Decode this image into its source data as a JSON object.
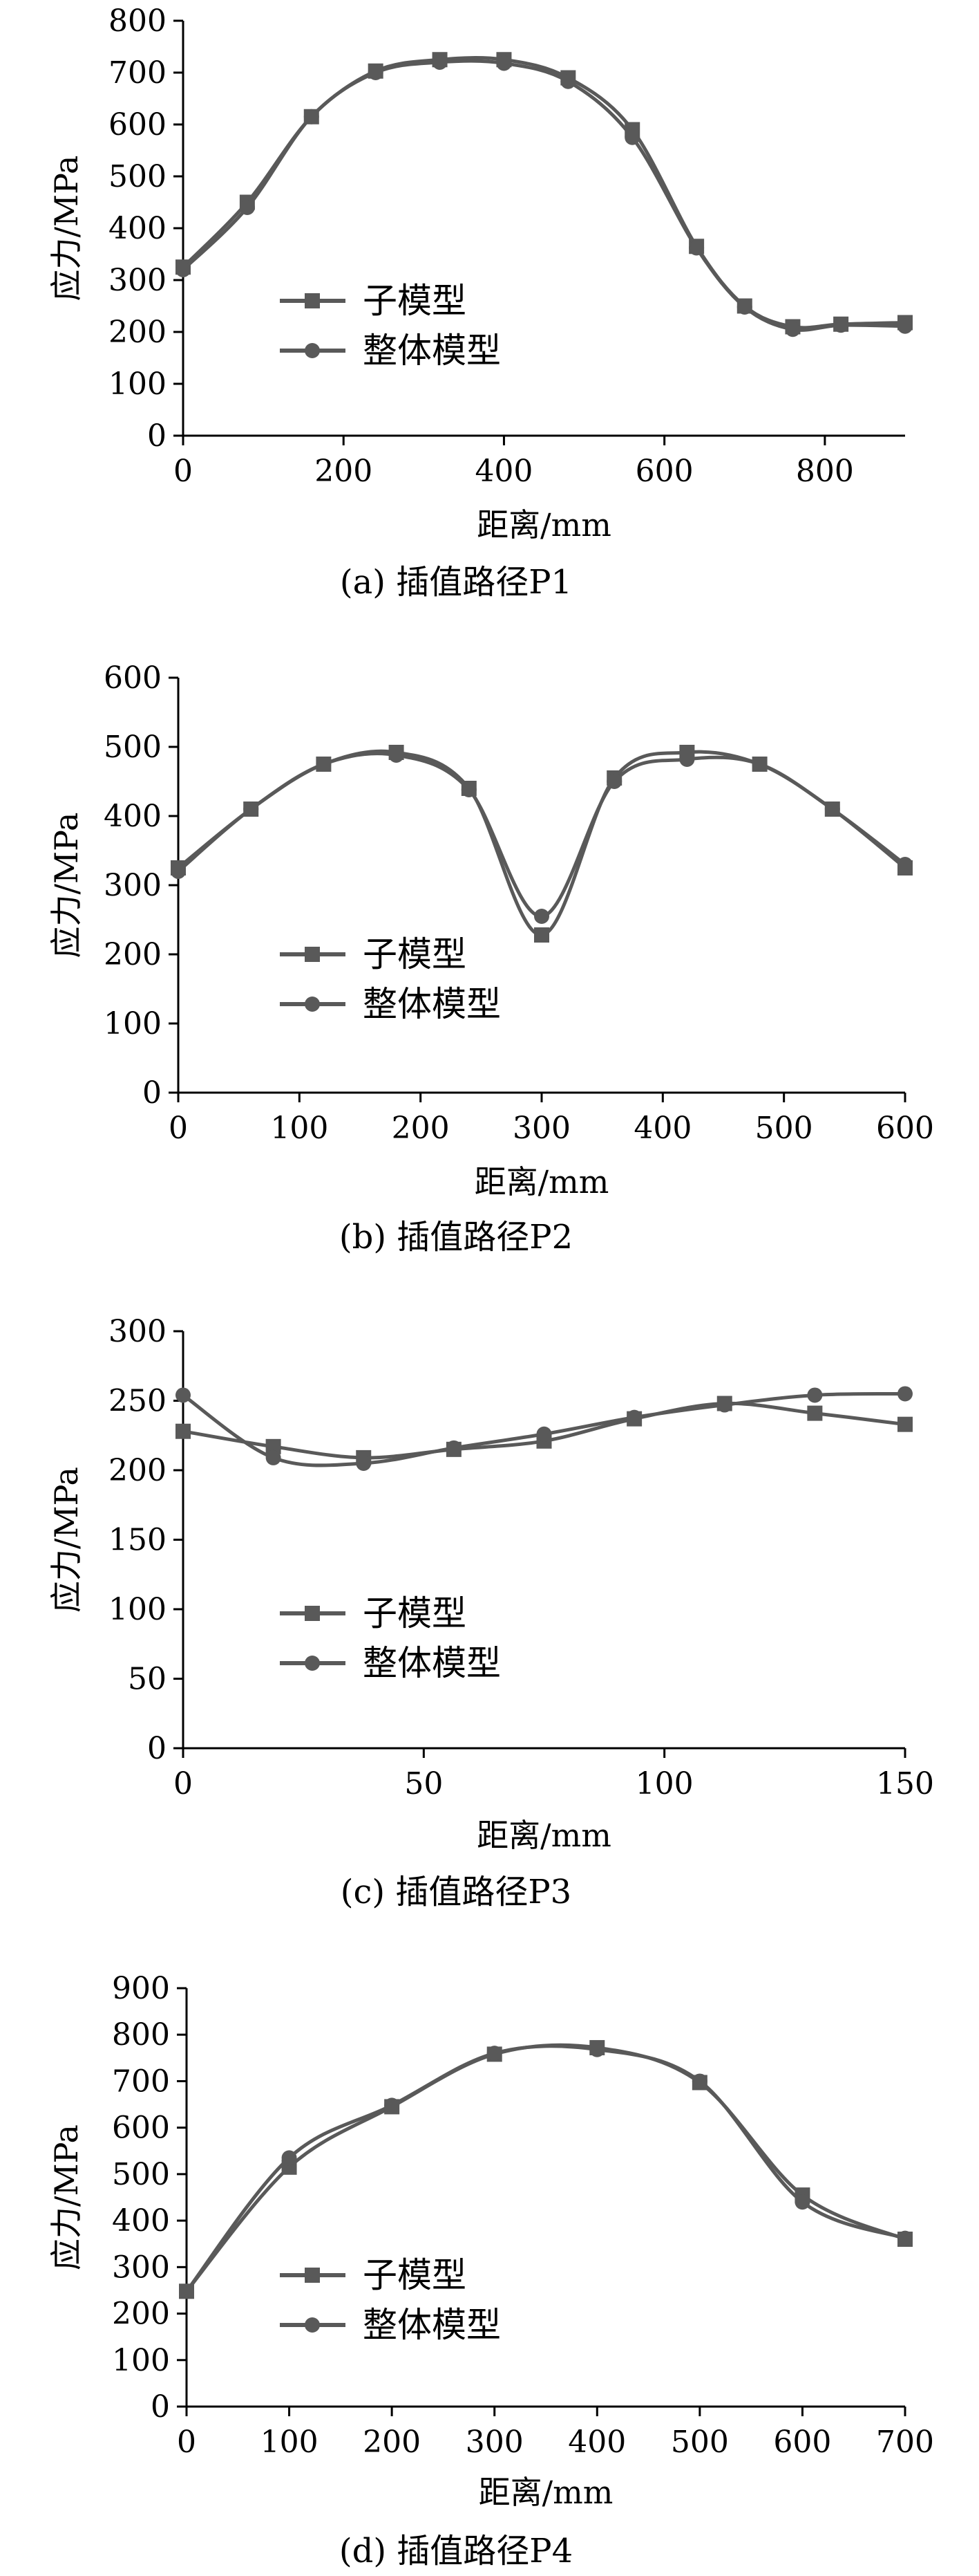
{
  "colors": {
    "axis": "#000000",
    "series": "#595959"
  },
  "chart_data": [
    {
      "type": "line",
      "caption": "(a) 插值路径P1",
      "xlabel": "距离/mm",
      "ylabel": "应力/MPa",
      "xlim": [
        0,
        900
      ],
      "ylim": [
        0,
        800
      ],
      "xticks": [
        0,
        200,
        400,
        600,
        800
      ],
      "yticks": [
        0,
        100,
        200,
        300,
        400,
        500,
        600,
        700,
        800
      ],
      "legend_position": "left-center",
      "series": [
        {
          "name": "子模型",
          "marker": "square",
          "x": [
            0,
            80,
            160,
            240,
            320,
            400,
            480,
            560,
            640,
            700,
            760,
            820,
            900
          ],
          "y": [
            325,
            450,
            615,
            703,
            725,
            725,
            690,
            590,
            365,
            250,
            210,
            215,
            218
          ]
        },
        {
          "name": "整体模型",
          "marker": "circle",
          "x": [
            0,
            80,
            160,
            240,
            320,
            400,
            480,
            560,
            640,
            700,
            760,
            820,
            900
          ],
          "y": [
            320,
            440,
            615,
            700,
            720,
            718,
            683,
            575,
            362,
            248,
            205,
            213,
            211
          ]
        }
      ]
    },
    {
      "type": "line",
      "caption": "(b) 插值路径P2",
      "xlabel": "距离/mm",
      "ylabel": "应力/MPa",
      "xlim": [
        0,
        600
      ],
      "ylim": [
        0,
        600
      ],
      "xticks": [
        0,
        100,
        200,
        300,
        400,
        500,
        600
      ],
      "yticks": [
        0,
        100,
        200,
        300,
        400,
        500,
        600
      ],
      "legend_position": "left-center",
      "series": [
        {
          "name": "子模型",
          "marker": "square",
          "x": [
            0,
            60,
            120,
            180,
            240,
            300,
            360,
            420,
            480,
            540,
            600
          ],
          "y": [
            325,
            410,
            475,
            492,
            440,
            228,
            455,
            492,
            475,
            410,
            325
          ]
        },
        {
          "name": "整体模型",
          "marker": "circle",
          "x": [
            0,
            60,
            120,
            180,
            240,
            300,
            360,
            420,
            480,
            540,
            600
          ],
          "y": [
            320,
            410,
            475,
            488,
            438,
            255,
            450,
            482,
            475,
            410,
            330
          ]
        }
      ]
    },
    {
      "type": "line",
      "caption": "(c) 插值路径P3",
      "xlabel": "距离/mm",
      "ylabel": "应力/MPa",
      "xlim": [
        0,
        150
      ],
      "ylim": [
        0,
        300
      ],
      "xticks": [
        0,
        50,
        100,
        150
      ],
      "yticks": [
        0,
        50,
        100,
        150,
        200,
        250,
        300
      ],
      "legend_position": "left-center",
      "series": [
        {
          "name": "子模型",
          "marker": "square",
          "x": [
            0,
            18.75,
            37.5,
            56.25,
            75,
            93.75,
            112.5,
            131.25,
            150
          ],
          "y": [
            228,
            217,
            209,
            215,
            221,
            237,
            248,
            241,
            233
          ]
        },
        {
          "name": "整体模型",
          "marker": "circle",
          "x": [
            0,
            18.75,
            37.5,
            56.25,
            75,
            93.75,
            112.5,
            131.25,
            150
          ],
          "y": [
            254,
            209,
            205,
            216,
            226,
            238,
            247,
            254,
            255
          ]
        }
      ]
    },
    {
      "type": "line",
      "caption": "(d) 插值路径P4",
      "xlabel": "距离/mm",
      "ylabel": "应力/MPa",
      "xlim": [
        0,
        700
      ],
      "ylim": [
        0,
        900
      ],
      "xticks": [
        0,
        100,
        200,
        300,
        400,
        500,
        600,
        700
      ],
      "yticks": [
        0,
        100,
        200,
        300,
        400,
        500,
        600,
        700,
        800,
        900
      ],
      "legend_position": "left-center",
      "series": [
        {
          "name": "子模型",
          "marker": "square",
          "x": [
            0,
            100,
            200,
            300,
            400,
            500,
            600,
            700
          ],
          "y": [
            248,
            515,
            645,
            758,
            772,
            697,
            455,
            360
          ]
        },
        {
          "name": "整体模型",
          "marker": "circle",
          "x": [
            0,
            100,
            200,
            300,
            400,
            500,
            600,
            700
          ],
          "y": [
            248,
            535,
            648,
            760,
            768,
            700,
            440,
            362
          ]
        }
      ]
    }
  ]
}
